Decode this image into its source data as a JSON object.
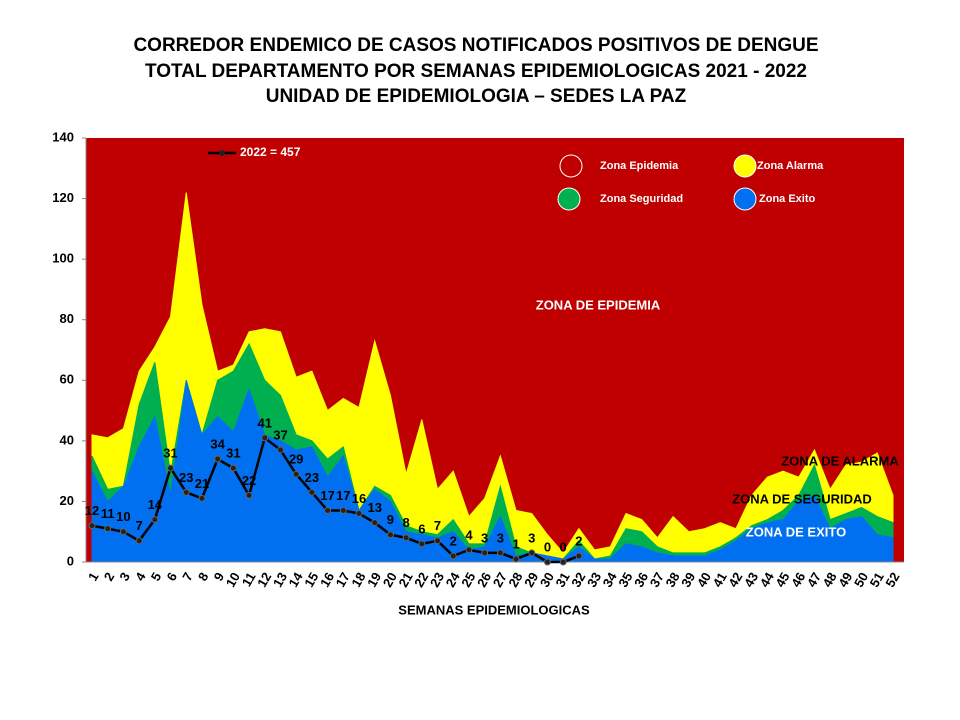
{
  "chart_data": {
    "type": "corridor",
    "title": [
      "CORREDOR ENDEMICO DE CASOS NOTIFICADOS POSITIVOS DE DENGUE",
      "TOTAL DEPARTAMENTO POR SEMANAS EPIDEMIOLOGICAS 2021 - 2022",
      "UNIDAD DE EPIDEMIOLOGIA – SEDES LA PAZ"
    ],
    "x_label": "SEMANAS EPIDEMIOLOGICAS",
    "categories": [
      "1",
      "2",
      "3",
      "4",
      "5",
      "6",
      "7",
      "8",
      "9",
      "10",
      "11",
      "12",
      "13",
      "14",
      "15",
      "16",
      "17",
      "18",
      "19",
      "20",
      "21",
      "22",
      "23",
      "24",
      "25",
      "26",
      "27",
      "28",
      "29",
      "30",
      "31",
      "32",
      "33",
      "34",
      "35",
      "36",
      "37",
      "38",
      "39",
      "40",
      "41",
      "42",
      "43",
      "44",
      "45",
      "46",
      "47",
      "48",
      "49",
      "50",
      "51",
      "52"
    ],
    "ylim": [
      0,
      140
    ],
    "yticks": [
      0,
      20,
      40,
      60,
      80,
      100,
      120,
      140
    ],
    "background_zone": {
      "name": "Zona Epidemia",
      "color": "#c00000"
    },
    "series": [
      {
        "name": "Zona Alarma",
        "color": "#ffff00",
        "values": [
          42,
          41,
          44,
          63,
          71,
          81,
          122,
          85,
          63,
          65,
          76,
          77,
          76,
          61,
          63,
          50,
          54,
          51,
          73,
          55,
          29,
          47,
          24,
          30,
          15,
          21,
          35,
          17,
          16,
          9,
          3,
          11,
          4,
          5,
          16,
          14,
          8,
          15,
          10,
          11,
          13,
          11,
          22,
          28,
          30,
          28,
          37,
          24,
          32,
          33,
          36,
          22
        ]
      },
      {
        "name": "Zona Seguridad",
        "color": "#00b050",
        "values": [
          35,
          24,
          25,
          52,
          66,
          29,
          60,
          42,
          60,
          63,
          72,
          60,
          55,
          42,
          40,
          34,
          38,
          17,
          25,
          22,
          12,
          10,
          9,
          14,
          6,
          6,
          25,
          5,
          3,
          2,
          1,
          7,
          1,
          2,
          11,
          10,
          5,
          3,
          3,
          3,
          5,
          8,
          12,
          14,
          17,
          22,
          32,
          14,
          16,
          18,
          15,
          13
        ]
      },
      {
        "name": "Zona Exito",
        "color": "#0070f0",
        "values": [
          30,
          20,
          25,
          38,
          48,
          22,
          60,
          42,
          48,
          43,
          57,
          42,
          40,
          37,
          38,
          28,
          35,
          17,
          24,
          20,
          10,
          9,
          8,
          10,
          4,
          5,
          15,
          2,
          3,
          2,
          1,
          5,
          1,
          1,
          6,
          5,
          3,
          2,
          2,
          2,
          4,
          7,
          11,
          13,
          14,
          20,
          22,
          11,
          14,
          15,
          9,
          8
        ]
      }
    ],
    "line": {
      "name": "2022 = 457",
      "color": "#000000",
      "values": [
        12,
        11,
        10,
        7,
        14,
        31,
        23,
        21,
        34,
        31,
        22,
        41,
        37,
        29,
        23,
        17,
        17,
        16,
        13,
        9,
        8,
        6,
        7,
        2,
        4,
        3,
        3,
        1,
        3,
        0,
        0,
        2,
        null,
        null,
        null,
        null,
        null,
        null,
        null,
        null,
        null,
        null,
        null,
        null,
        null,
        null,
        null,
        null,
        null,
        null,
        null,
        null
      ]
    },
    "annotations": [
      {
        "text": "ZONA DE EPIDEMIA",
        "color": "#ffffff"
      },
      {
        "text": "ZONA DE ALARMA",
        "color": "#000000"
      },
      {
        "text": "ZONA DE  SEGURIDAD",
        "color": "#000000"
      },
      {
        "text": "ZONA DE  EXITO",
        "color": "#ffffff"
      }
    ]
  }
}
